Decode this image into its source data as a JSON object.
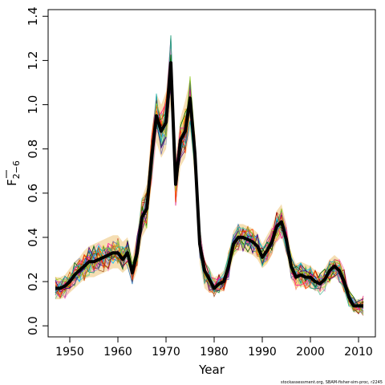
{
  "chart_data": {
    "type": "line",
    "xlabel": "Year",
    "ylabel_main": "F",
    "ylabel_sub": "2−6",
    "xlim": [
      1945.5,
      2013.5
    ],
    "ylim": [
      -0.05,
      1.43
    ],
    "x_ticks": [
      1950,
      1960,
      1970,
      1980,
      1990,
      2000,
      2010
    ],
    "x_tick_labels": [
      "1950",
      "1960",
      "1970",
      "1980",
      "1990",
      "2000",
      "2010"
    ],
    "y_ticks": [
      0.0,
      0.2,
      0.4,
      0.6,
      0.8,
      1.0,
      1.2,
      1.4
    ],
    "y_tick_labels": [
      "0.0",
      "0.2",
      "0.4",
      "0.6",
      "0.8",
      "1.0",
      "1.2",
      "1.4"
    ],
    "grid": false,
    "series": [
      {
        "role": "estimate",
        "x": [
          1947,
          1948,
          1949,
          1950,
          1951,
          1952,
          1953,
          1954,
          1955,
          1956,
          1957,
          1958,
          1959,
          1960,
          1961,
          1962,
          1963,
          1964,
          1965,
          1966,
          1967,
          1968,
          1969,
          1970,
          1971,
          1972,
          1973,
          1974,
          1975,
          1976,
          1977,
          1978,
          1979,
          1980,
          1981,
          1982,
          1983,
          1984,
          1985,
          1986,
          1987,
          1988,
          1989,
          1990,
          1991,
          1992,
          1993,
          1994,
          1995,
          1996,
          1997,
          1998,
          1999,
          2000,
          2001,
          2002,
          2003,
          2004,
          2005,
          2006,
          2007,
          2008,
          2009,
          2010,
          2011
        ],
        "y": [
          0.17,
          0.17,
          0.18,
          0.2,
          0.23,
          0.25,
          0.27,
          0.29,
          0.29,
          0.3,
          0.31,
          0.32,
          0.33,
          0.33,
          0.3,
          0.33,
          0.24,
          0.33,
          0.49,
          0.53,
          0.76,
          0.95,
          0.88,
          0.92,
          1.19,
          0.64,
          0.84,
          0.88,
          1.03,
          0.78,
          0.37,
          0.25,
          0.21,
          0.17,
          0.19,
          0.2,
          0.27,
          0.37,
          0.4,
          0.4,
          0.39,
          0.38,
          0.36,
          0.31,
          0.34,
          0.38,
          0.45,
          0.47,
          0.39,
          0.27,
          0.22,
          0.23,
          0.22,
          0.22,
          0.2,
          0.19,
          0.21,
          0.25,
          0.27,
          0.25,
          0.2,
          0.13,
          0.09,
          0.09,
          0.09
        ]
      },
      {
        "role": "band-upper",
        "values": [
          0.22,
          0.22,
          0.23,
          0.26,
          0.29,
          0.31,
          0.34,
          0.36,
          0.37,
          0.38,
          0.39,
          0.4,
          0.41,
          0.41,
          0.38,
          0.4,
          0.31,
          0.42,
          0.58,
          0.64,
          0.88,
          1.05,
          1.0,
          1.06,
          1.3,
          0.76,
          0.94,
          1.02,
          1.12,
          0.88,
          0.44,
          0.3,
          0.26,
          0.22,
          0.23,
          0.25,
          0.33,
          0.43,
          0.46,
          0.46,
          0.45,
          0.44,
          0.42,
          0.37,
          0.41,
          0.45,
          0.52,
          0.55,
          0.46,
          0.33,
          0.28,
          0.29,
          0.28,
          0.27,
          0.25,
          0.24,
          0.26,
          0.3,
          0.32,
          0.3,
          0.25,
          0.17,
          0.12,
          0.12,
          0.13
        ]
      },
      {
        "role": "band-lower",
        "values": [
          0.12,
          0.12,
          0.13,
          0.15,
          0.17,
          0.19,
          0.21,
          0.22,
          0.22,
          0.23,
          0.24,
          0.25,
          0.26,
          0.26,
          0.24,
          0.26,
          0.19,
          0.25,
          0.4,
          0.44,
          0.64,
          0.83,
          0.76,
          0.8,
          1.0,
          0.54,
          0.72,
          0.76,
          0.88,
          0.66,
          0.28,
          0.17,
          0.15,
          0.15,
          0.15,
          0.16,
          0.22,
          0.31,
          0.34,
          0.34,
          0.33,
          0.32,
          0.3,
          0.26,
          0.28,
          0.32,
          0.38,
          0.4,
          0.33,
          0.21,
          0.17,
          0.18,
          0.17,
          0.17,
          0.16,
          0.15,
          0.17,
          0.2,
          0.22,
          0.2,
          0.15,
          0.09,
          0.06,
          0.06,
          0.06
        ]
      }
    ],
    "simulation_colors": [
      "#e41a1c",
      "#377eb8",
      "#4daf4a",
      "#984ea3",
      "#ff7f00",
      "#a65628",
      "#f781bf",
      "#999999",
      "#66c2a5",
      "#fc8d62",
      "#8da0cb",
      "#e78ac3",
      "#a6d854",
      "#ffd92f",
      "#1b9e77",
      "#d95f02",
      "#7570b3",
      "#e7298a",
      "#00bfff",
      "#8b0000",
      "#006400",
      "#ff1493",
      "#b8860b",
      "#4b0082",
      "#2f4f4f",
      "#ff4500",
      "#20b2aa",
      "#9acd32"
    ],
    "band_color": "#f5deb3"
  },
  "footer_text": "stockassessment.org, SBAM-fisher-sim-proc, r2245"
}
